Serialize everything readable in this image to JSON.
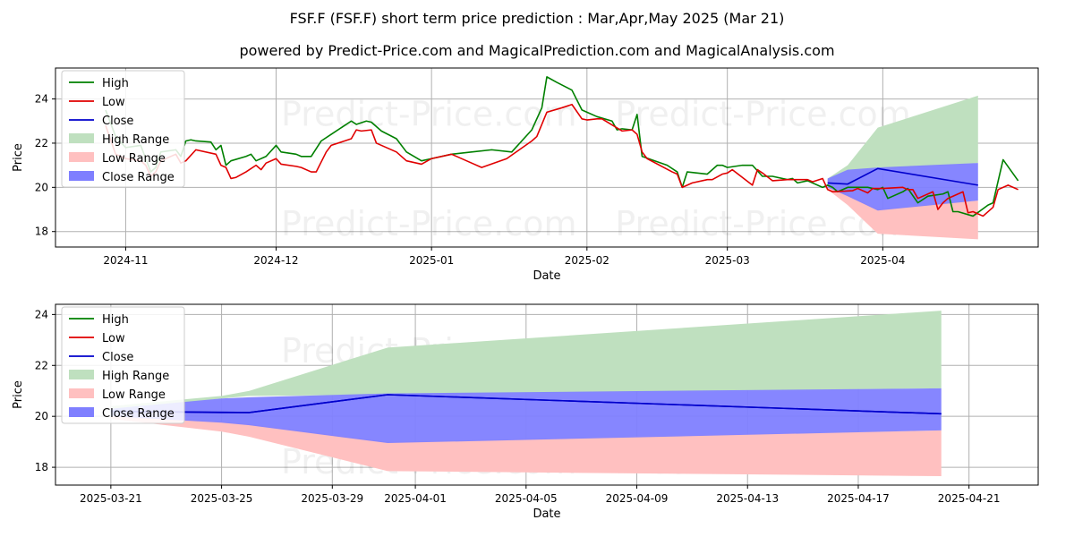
{
  "title": "FSF.F (FSF.F) short term price prediction : Mar,Apr,May 2025 (Mar 21)",
  "subtitle": "powered by Predict-Price.com and MagicalPrediction.com and MagicalAnalysis.com",
  "watermark": "Predict-Price.com",
  "colors": {
    "high": "#008000",
    "low": "#e00000",
    "close": "#0000cc",
    "high_range": "#bfe0bf",
    "low_range": "#ffc0c0",
    "close_range": "#7f7fff"
  },
  "chart_data": [
    {
      "type": "line",
      "xlabel": "Date",
      "ylabel": "Price",
      "ylim": [
        17.3,
        25.4
      ],
      "grid": true,
      "legend_placement": "top-left",
      "legend": [
        "High",
        "Low",
        "Close",
        "High Range",
        "Low Range",
        "Close Range"
      ],
      "x_ticks": [
        "2024-11",
        "2024-12",
        "2025-01",
        "2025-02",
        "2025-03",
        "2025-04"
      ],
      "y_ticks": [
        "18",
        "20",
        "22",
        "24"
      ],
      "series": [
        {
          "name": "High",
          "points": [
            [
              "2024-10-28",
              23.5
            ],
            [
              "2024-10-30",
              22.3
            ],
            [
              "2024-11-01",
              21.8
            ],
            [
              "2024-11-04",
              21.9
            ],
            [
              "2024-11-05",
              21.3
            ],
            [
              "2024-11-06",
              20.7
            ],
            [
              "2024-11-07",
              20.9
            ],
            [
              "2024-11-08",
              21.6
            ],
            [
              "2024-11-11",
              21.7
            ],
            [
              "2024-11-12",
              21.4
            ],
            [
              "2024-11-13",
              22.1
            ],
            [
              "2024-11-14",
              22.15
            ],
            [
              "2024-11-15",
              22.1
            ],
            [
              "2024-11-18",
              22.05
            ],
            [
              "2024-11-19",
              21.7
            ],
            [
              "2024-11-20",
              21.9
            ],
            [
              "2024-11-21",
              21.0
            ],
            [
              "2024-11-22",
              21.2
            ],
            [
              "2024-11-25",
              21.4
            ],
            [
              "2024-11-26",
              21.5
            ],
            [
              "2024-11-27",
              21.2
            ],
            [
              "2024-11-29",
              21.4
            ],
            [
              "2024-12-01",
              21.9
            ],
            [
              "2024-12-02",
              21.6
            ],
            [
              "2024-12-05",
              21.5
            ],
            [
              "2024-12-06",
              21.4
            ],
            [
              "2024-12-08",
              21.4
            ],
            [
              "2024-12-10",
              22.1
            ],
            [
              "2024-12-12",
              22.4
            ],
            [
              "2024-12-16",
              23.0
            ],
            [
              "2024-12-17",
              22.85
            ],
            [
              "2024-12-19",
              23.0
            ],
            [
              "2024-12-20",
              22.95
            ],
            [
              "2024-12-22",
              22.55
            ],
            [
              "2024-12-25",
              22.2
            ],
            [
              "2024-12-27",
              21.6
            ],
            [
              "2024-12-30",
              21.2
            ],
            [
              "2025-01-01",
              21.3
            ],
            [
              "2025-01-05",
              21.5
            ],
            [
              "2025-01-09",
              21.6
            ],
            [
              "2025-01-13",
              21.7
            ],
            [
              "2025-01-17",
              21.6
            ],
            [
              "2025-01-21",
              22.6
            ],
            [
              "2025-01-23",
              23.6
            ],
            [
              "2025-01-24",
              25.0
            ],
            [
              "2025-01-26",
              24.75
            ],
            [
              "2025-01-29",
              24.4
            ],
            [
              "2025-01-31",
              23.5
            ],
            [
              "2025-02-01",
              23.4
            ],
            [
              "2025-02-03",
              23.2
            ],
            [
              "2025-02-06",
              23.0
            ],
            [
              "2025-02-07",
              22.6
            ],
            [
              "2025-02-08",
              22.65
            ],
            [
              "2025-02-10",
              22.6
            ],
            [
              "2025-02-11",
              23.3
            ],
            [
              "2025-02-12",
              21.4
            ],
            [
              "2025-02-17",
              21.0
            ],
            [
              "2025-02-19",
              20.7
            ],
            [
              "2025-02-20",
              20.0
            ],
            [
              "2025-02-21",
              20.7
            ],
            [
              "2025-02-25",
              20.6
            ],
            [
              "2025-02-27",
              21.0
            ],
            [
              "2025-02-28",
              21.0
            ],
            [
              "2025-03-01",
              20.9
            ],
            [
              "2025-03-04",
              21.0
            ],
            [
              "2025-03-06",
              21.0
            ],
            [
              "2025-03-07",
              20.75
            ],
            [
              "2025-03-08",
              20.5
            ],
            [
              "2025-03-10",
              20.5
            ],
            [
              "2025-03-13",
              20.35
            ],
            [
              "2025-03-14",
              20.4
            ],
            [
              "2025-03-15",
              20.2
            ],
            [
              "2025-03-17",
              20.3
            ],
            [
              "2025-03-20",
              20.0
            ],
            [
              "2025-03-21",
              20.1
            ],
            [
              "2025-03-22",
              20.0
            ],
            [
              "2025-03-23",
              19.8
            ],
            [
              "2025-03-25",
              20.0
            ],
            [
              "2025-03-27",
              20.0
            ],
            [
              "2025-03-29",
              20.0
            ],
            [
              "2025-03-31",
              19.9
            ],
            [
              "2025-04-01",
              20.0
            ],
            [
              "2025-04-02",
              19.5
            ],
            [
              "2025-04-05",
              19.8
            ],
            [
              "2025-04-06",
              19.95
            ],
            [
              "2025-04-08",
              19.3
            ],
            [
              "2025-04-10",
              19.6
            ],
            [
              "2025-04-13",
              19.7
            ],
            [
              "2025-04-14",
              19.8
            ],
            [
              "2025-04-15",
              18.9
            ],
            [
              "2025-04-16",
              18.9
            ],
            [
              "2025-04-19",
              18.7
            ],
            [
              "2025-04-22",
              19.2
            ],
            [
              "2025-04-23",
              19.3
            ],
            [
              "2025-04-25",
              21.25
            ],
            [
              "2025-04-28",
              20.3
            ]
          ]
        },
        {
          "name": "Low",
          "points": [
            [
              "2024-10-28",
              22.8
            ],
            [
              "2024-10-30",
              21.5
            ],
            [
              "2024-11-01",
              21.3
            ],
            [
              "2024-11-04",
              21.2
            ],
            [
              "2024-11-05",
              21.0
            ],
            [
              "2024-11-06",
              20.5
            ],
            [
              "2024-11-07",
              20.7
            ],
            [
              "2024-11-08",
              21.2
            ],
            [
              "2024-11-11",
              21.5
            ],
            [
              "2024-11-12",
              21.1
            ],
            [
              "2024-11-13",
              21.2
            ],
            [
              "2024-11-15",
              21.7
            ],
            [
              "2024-11-19",
              21.5
            ],
            [
              "2024-11-20",
              21.0
            ],
            [
              "2024-11-21",
              20.9
            ],
            [
              "2024-11-22",
              20.4
            ],
            [
              "2024-11-23",
              20.45
            ],
            [
              "2024-11-25",
              20.7
            ],
            [
              "2024-11-27",
              21.0
            ],
            [
              "2024-11-28",
              20.8
            ],
            [
              "2024-11-29",
              21.1
            ],
            [
              "2024-12-01",
              21.3
            ],
            [
              "2024-12-02",
              21.05
            ],
            [
              "2024-12-05",
              20.95
            ],
            [
              "2024-12-06",
              20.9
            ],
            [
              "2024-12-08",
              20.7
            ],
            [
              "2024-12-09",
              20.7
            ],
            [
              "2024-12-11",
              21.6
            ],
            [
              "2024-12-12",
              21.9
            ],
            [
              "2024-12-16",
              22.2
            ],
            [
              "2024-12-17",
              22.6
            ],
            [
              "2024-12-18",
              22.55
            ],
            [
              "2024-12-20",
              22.6
            ],
            [
              "2024-12-21",
              22.0
            ],
            [
              "2024-12-25",
              21.6
            ],
            [
              "2024-12-27",
              21.2
            ],
            [
              "2024-12-30",
              21.05
            ],
            [
              "2025-01-01",
              21.3
            ],
            [
              "2025-01-05",
              21.5
            ],
            [
              "2025-01-09",
              21.1
            ],
            [
              "2025-01-11",
              20.9
            ],
            [
              "2025-01-16",
              21.3
            ],
            [
              "2025-01-21",
              22.1
            ],
            [
              "2025-01-22",
              22.3
            ],
            [
              "2025-01-24",
              23.4
            ],
            [
              "2025-01-27",
              23.6
            ],
            [
              "2025-01-29",
              23.75
            ],
            [
              "2025-01-31",
              23.1
            ],
            [
              "2025-02-01",
              23.05
            ],
            [
              "2025-02-03",
              23.1
            ],
            [
              "2025-02-04",
              23.1
            ],
            [
              "2025-02-08",
              22.55
            ],
            [
              "2025-02-10",
              22.6
            ],
            [
              "2025-02-11",
              22.4
            ],
            [
              "2025-02-12",
              21.6
            ],
            [
              "2025-02-13",
              21.3
            ],
            [
              "2025-02-18",
              20.7
            ],
            [
              "2025-02-19",
              20.6
            ],
            [
              "2025-02-20",
              20.0
            ],
            [
              "2025-02-22",
              20.2
            ],
            [
              "2025-02-25",
              20.35
            ],
            [
              "2025-02-26",
              20.35
            ],
            [
              "2025-02-28",
              20.6
            ],
            [
              "2025-03-01",
              20.65
            ],
            [
              "2025-03-02",
              20.8
            ],
            [
              "2025-03-06",
              20.1
            ],
            [
              "2025-03-07",
              20.8
            ],
            [
              "2025-03-08",
              20.65
            ],
            [
              "2025-03-10",
              20.3
            ],
            [
              "2025-03-13",
              20.35
            ],
            [
              "2025-03-17",
              20.35
            ],
            [
              "2025-03-18",
              20.25
            ],
            [
              "2025-03-20",
              20.4
            ],
            [
              "2025-03-21",
              19.9
            ],
            [
              "2025-03-22",
              19.8
            ],
            [
              "2025-03-26",
              19.85
            ],
            [
              "2025-03-27",
              19.95
            ],
            [
              "2025-03-29",
              19.75
            ],
            [
              "2025-03-30",
              19.95
            ],
            [
              "2025-04-01",
              19.95
            ],
            [
              "2025-04-05",
              20.0
            ],
            [
              "2025-04-06",
              19.9
            ],
            [
              "2025-04-07",
              19.9
            ],
            [
              "2025-04-08",
              19.5
            ],
            [
              "2025-04-11",
              19.8
            ],
            [
              "2025-04-12",
              19.0
            ],
            [
              "2025-04-13",
              19.3
            ],
            [
              "2025-04-14",
              19.5
            ],
            [
              "2025-04-15",
              19.6
            ],
            [
              "2025-04-17",
              19.8
            ],
            [
              "2025-04-18",
              18.85
            ],
            [
              "2025-04-19",
              18.9
            ],
            [
              "2025-04-21",
              18.7
            ],
            [
              "2025-04-23",
              19.1
            ],
            [
              "2025-04-24",
              19.9
            ],
            [
              "2025-04-26",
              20.1
            ],
            [
              "2025-04-28",
              19.9
            ]
          ]
        }
      ],
      "forecast": {
        "dates": [
          "2025-03-21",
          "2025-03-25",
          "2025-03-31",
          "2025-04-20"
        ],
        "high_range": {
          "upper": [
            20.4,
            21.0,
            22.7,
            24.15
          ],
          "lower": [
            20.2,
            20.2,
            20.8,
            21.1
          ]
        },
        "low_range": {
          "upper": [
            20.1,
            19.7,
            19.0,
            19.4
          ],
          "lower": [
            19.9,
            19.2,
            17.9,
            17.65
          ]
        },
        "close_range": {
          "upper": [
            20.4,
            20.8,
            20.9,
            21.1
          ],
          "lower": [
            20.0,
            19.6,
            18.95,
            19.4
          ]
        },
        "close": [
          20.2,
          20.15,
          20.85,
          20.1
        ]
      }
    },
    {
      "type": "line",
      "xlabel": "Date",
      "ylabel": "Price",
      "ylim": [
        17.3,
        24.4
      ],
      "grid": true,
      "legend_placement": "top-left",
      "legend": [
        "High",
        "Low",
        "Close",
        "High Range",
        "Low Range",
        "Close Range"
      ],
      "x_ticks": [
        "2025-03-21",
        "2025-03-25",
        "2025-03-29",
        "2025-04-01",
        "2025-04-05",
        "2025-04-09",
        "2025-04-13",
        "2025-04-17",
        "2025-04-21"
      ],
      "y_ticks": [
        "18",
        "20",
        "22",
        "24"
      ],
      "series": [
        {
          "name": "Close",
          "points": [
            [
              "2025-03-21",
              20.2
            ],
            [
              "2025-03-26",
              20.15
            ],
            [
              "2025-03-31",
              20.85
            ],
            [
              "2025-04-20",
              20.1
            ]
          ]
        }
      ],
      "forecast": {
        "dates": [
          "2025-03-21",
          "2025-03-25",
          "2025-03-26",
          "2025-03-31",
          "2025-04-20"
        ],
        "high_range": {
          "upper": [
            20.4,
            20.8,
            21.0,
            22.7,
            24.15
          ],
          "lower": [
            20.2,
            20.7,
            20.8,
            20.85,
            21.1
          ]
        },
        "low_range": {
          "upper": [
            20.1,
            19.8,
            19.7,
            19.0,
            19.45
          ],
          "lower": [
            19.9,
            19.4,
            19.2,
            17.85,
            17.65
          ]
        },
        "close_range": {
          "upper": [
            20.3,
            20.7,
            20.75,
            20.9,
            21.1
          ],
          "lower": [
            20.0,
            19.75,
            19.65,
            18.95,
            19.45
          ]
        },
        "close": [
          20.2,
          20.15,
          20.15,
          20.85,
          20.1
        ]
      }
    }
  ]
}
